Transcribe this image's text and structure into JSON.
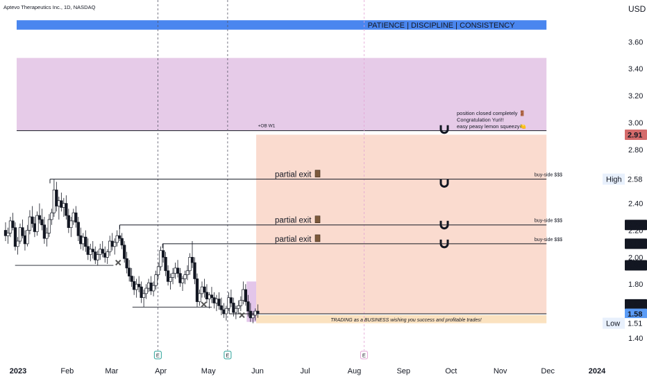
{
  "header": {
    "symbol_title": "Aptevo Therapeutics Inc., 1D, NASDAQ",
    "currency": "USD"
  },
  "chart_data": {
    "type": "candlestick",
    "title": "Aptevo Therapeutics Inc., 1D, NASDAQ",
    "y_unit": "USD",
    "ylim": [
      1.28,
      3.82
    ],
    "x_range": [
      "2023-01-01",
      "2024-01-08"
    ],
    "x_ticks": [
      {
        "label": "2023",
        "date": "2023-01-01",
        "bold": true
      },
      {
        "label": "Feb",
        "date": "2023-02-01"
      },
      {
        "label": "Mar",
        "date": "2023-03-01"
      },
      {
        "label": "Apr",
        "date": "2023-04-01"
      },
      {
        "label": "May",
        "date": "2023-05-01"
      },
      {
        "label": "Jun",
        "date": "2023-06-01"
      },
      {
        "label": "Jul",
        "date": "2023-07-01"
      },
      {
        "label": "Aug",
        "date": "2023-08-01"
      },
      {
        "label": "Sep",
        "date": "2023-09-01"
      },
      {
        "label": "Oct",
        "date": "2023-10-01"
      },
      {
        "label": "Nov",
        "date": "2023-11-01"
      },
      {
        "label": "Dec",
        "date": "2023-12-01"
      },
      {
        "label": "2024",
        "date": "2024-01-01",
        "bold": true
      }
    ],
    "y_ticks": [
      "1.40",
      "1.60",
      "1.80",
      "2.00",
      "2.20",
      "2.40",
      "2.60",
      "2.80",
      "3.00",
      "3.20",
      "3.40",
      "3.60"
    ],
    "price_labels": [
      {
        "text": "2.91",
        "value": 2.91,
        "bg": "#d46b6b",
        "fg": "#ffffff"
      },
      {
        "text": "2.58",
        "value": 2.58,
        "tag": "High",
        "bg": "#ffffff",
        "fg": "#131722"
      },
      {
        "text": "2.24",
        "value": 2.24,
        "bg": "#131722",
        "fg": "#ffffff"
      },
      {
        "text": "2.10",
        "value": 2.1,
        "bg": "#131722",
        "fg": "#ffffff"
      },
      {
        "text": "1.94",
        "value": 1.94,
        "bg": "#131722",
        "fg": "#ffffff"
      },
      {
        "text": "1.65",
        "value": 1.65,
        "bg": "#131722",
        "fg": "#ffffff"
      },
      {
        "text": "1.58",
        "value": 1.58,
        "bg": "#5b9cf6",
        "fg": "#ffffff"
      },
      {
        "text": "1.51",
        "value": 1.51,
        "tag": "Low",
        "bg": "#ffffff",
        "fg": "#131722"
      }
    ],
    "zones": [
      {
        "name": "banner",
        "y1": 3.76,
        "y2": 3.69,
        "x1": "2023-01-01",
        "x2": "2023-12-01",
        "color": "#4a86ef",
        "label": "PATIENCE | DISCIPLINE | CONSISTENCY"
      },
      {
        "name": "order-block",
        "y1": 3.48,
        "y2": 2.94,
        "x1": "2023-01-01",
        "x2": "2023-12-01",
        "color": "#e6cbe8",
        "label": "+OB W1"
      },
      {
        "name": "target-zone",
        "y1": 2.91,
        "y2": 1.58,
        "x1": "2023-06-01",
        "x2": "2023-12-01",
        "color": "#fadbcf"
      },
      {
        "name": "entry-zone",
        "y1": 1.57,
        "y2": 1.51,
        "x1": "2023-06-01",
        "x2": "2023-12-01",
        "color": "#fbe2c0",
        "label": "TRADING as a BUSINESS wishing you success and profitable trades!"
      },
      {
        "name": "liquidity-sweep",
        "y1": 1.82,
        "y2": 1.52,
        "x1": "2023-05-26",
        "x2": "2023-06-01",
        "color": "#e3c6ea"
      }
    ],
    "levels": [
      {
        "value": 2.58,
        "x1": "2023-01-22",
        "x2": "2023-12-01",
        "label": "partial exit",
        "tag": "buy-side $$$"
      },
      {
        "value": 2.24,
        "x1": "2023-03-07",
        "x2": "2023-12-01",
        "label": "partial exit",
        "tag": "buy-side $$$"
      },
      {
        "value": 2.1,
        "x1": "2023-04-03",
        "x2": "2023-12-01",
        "label": "partial exit",
        "tag": "buy-side $$$"
      }
    ],
    "swept_levels": [
      {
        "value": 1.94,
        "x1": "2022-12-31",
        "x2": "2023-03-03"
      },
      {
        "value": 1.63,
        "x1": "2023-03-15",
        "x2": "2023-05-04"
      },
      {
        "value": 1.58,
        "x1": "2023-05-15",
        "x2": "2023-12-01"
      }
    ],
    "vertical_markers": [
      {
        "date": "2023-03-31",
        "label": "E"
      },
      {
        "date": "2023-05-14",
        "label": "E"
      },
      {
        "date": "2023-08-08",
        "label": "E"
      }
    ],
    "cross_marks": [
      {
        "date": "2023-03-06",
        "value": 1.96
      },
      {
        "date": "2023-04-29",
        "value": 1.65
      },
      {
        "date": "2023-05-23",
        "value": 1.57
      }
    ],
    "magnet_marks": [
      2.96,
      2.55,
      2.24,
      2.1
    ],
    "note": [
      "position closed completely 🚪",
      "Congratulation Yuri!!",
      "easy peasy lemon squeezy🍋"
    ],
    "candles": [
      [
        2.2,
        2.26,
        2.12,
        2.16
      ],
      [
        2.16,
        2.22,
        2.1,
        2.18
      ],
      [
        2.18,
        2.3,
        2.15,
        2.27
      ],
      [
        2.27,
        2.33,
        2.2,
        2.22
      ],
      [
        2.22,
        2.26,
        2.05,
        2.08
      ],
      [
        2.08,
        2.15,
        2.02,
        2.12
      ],
      [
        2.12,
        2.25,
        2.1,
        2.22
      ],
      [
        2.22,
        2.28,
        2.14,
        2.16
      ],
      [
        2.16,
        2.2,
        2.05,
        2.1
      ],
      [
        2.1,
        2.24,
        2.08,
        2.2
      ],
      [
        2.2,
        2.35,
        2.17,
        2.3
      ],
      [
        2.3,
        2.38,
        2.22,
        2.25
      ],
      [
        2.25,
        2.3,
        2.15,
        2.19
      ],
      [
        2.19,
        2.34,
        2.16,
        2.31
      ],
      [
        2.31,
        2.4,
        2.25,
        2.28
      ],
      [
        2.28,
        2.36,
        2.2,
        2.24
      ],
      [
        2.24,
        2.3,
        2.1,
        2.14
      ],
      [
        2.14,
        2.22,
        2.08,
        2.18
      ],
      [
        2.18,
        2.32,
        2.15,
        2.28
      ],
      [
        2.28,
        2.36,
        2.24,
        2.33
      ],
      [
        2.33,
        2.58,
        2.3,
        2.5
      ],
      [
        2.5,
        2.56,
        2.34,
        2.38
      ],
      [
        2.38,
        2.45,
        2.28,
        2.42
      ],
      [
        2.42,
        2.48,
        2.34,
        2.37
      ],
      [
        2.37,
        2.44,
        2.3,
        2.4
      ],
      [
        2.4,
        2.46,
        2.28,
        2.31
      ],
      [
        2.31,
        2.36,
        2.18,
        2.22
      ],
      [
        2.22,
        2.3,
        2.15,
        2.27
      ],
      [
        2.27,
        2.36,
        2.24,
        2.33
      ],
      [
        2.33,
        2.38,
        2.22,
        2.26
      ],
      [
        2.26,
        2.3,
        2.12,
        2.16
      ],
      [
        2.16,
        2.22,
        2.06,
        2.1
      ],
      [
        2.1,
        2.18,
        2.05,
        2.15
      ],
      [
        2.15,
        2.2,
        2.04,
        2.08
      ],
      [
        2.08,
        2.14,
        1.98,
        2.02
      ],
      [
        2.02,
        2.1,
        1.97,
        2.06
      ],
      [
        2.06,
        2.12,
        1.99,
        2.04
      ],
      [
        2.04,
        2.08,
        1.95,
        1.98
      ],
      [
        1.98,
        2.05,
        1.94,
        2.02
      ],
      [
        2.02,
        2.1,
        1.98,
        2.06
      ],
      [
        2.06,
        2.12,
        2.0,
        2.03
      ],
      [
        2.03,
        2.08,
        1.96,
        2.0
      ],
      [
        2.0,
        2.06,
        1.95,
        2.04
      ],
      [
        2.04,
        2.16,
        2.01,
        2.12
      ],
      [
        2.12,
        2.18,
        2.05,
        2.08
      ],
      [
        2.08,
        2.14,
        2.02,
        2.11
      ],
      [
        2.11,
        2.2,
        2.08,
        2.16
      ],
      [
        2.16,
        2.24,
        2.12,
        2.14
      ],
      [
        2.14,
        2.18,
        2.06,
        2.09
      ],
      [
        2.09,
        2.12,
        1.96,
        1.99
      ],
      [
        1.99,
        2.04,
        1.88,
        1.92
      ],
      [
        1.92,
        1.98,
        1.82,
        1.86
      ],
      [
        1.86,
        1.92,
        1.78,
        1.82
      ],
      [
        1.82,
        1.86,
        1.72,
        1.76
      ],
      [
        1.76,
        1.84,
        1.7,
        1.8
      ],
      [
        1.8,
        1.86,
        1.74,
        1.78
      ],
      [
        1.78,
        1.82,
        1.66,
        1.7
      ],
      [
        1.7,
        1.76,
        1.63,
        1.73
      ],
      [
        1.73,
        1.8,
        1.69,
        1.77
      ],
      [
        1.77,
        1.84,
        1.74,
        1.81
      ],
      [
        1.81,
        1.86,
        1.72,
        1.75
      ],
      [
        1.75,
        1.82,
        1.71,
        1.79
      ],
      [
        1.79,
        1.9,
        1.76,
        1.87
      ],
      [
        1.87,
        1.96,
        1.84,
        1.93
      ],
      [
        1.93,
        2.08,
        1.9,
        2.05
      ],
      [
        2.05,
        2.1,
        1.96,
        2.0
      ],
      [
        2.0,
        2.04,
        1.86,
        1.9
      ],
      [
        1.9,
        1.94,
        1.79,
        1.82
      ],
      [
        1.82,
        1.88,
        1.76,
        1.85
      ],
      [
        1.85,
        1.92,
        1.8,
        1.88
      ],
      [
        1.88,
        1.96,
        1.84,
        1.92
      ],
      [
        1.92,
        1.98,
        1.85,
        1.88
      ],
      [
        1.88,
        1.92,
        1.78,
        1.81
      ],
      [
        1.81,
        1.86,
        1.75,
        1.84
      ],
      [
        1.84,
        1.9,
        1.8,
        1.87
      ],
      [
        1.87,
        1.94,
        1.83,
        1.9
      ],
      [
        1.9,
        2.03,
        1.87,
        2.0
      ],
      [
        2.0,
        2.12,
        1.92,
        1.96
      ],
      [
        1.96,
        2.0,
        1.8,
        1.84
      ],
      [
        1.84,
        1.88,
        1.63,
        1.67
      ],
      [
        1.67,
        1.76,
        1.64,
        1.73
      ],
      [
        1.73,
        1.82,
        1.7,
        1.78
      ],
      [
        1.78,
        1.84,
        1.7,
        1.74
      ],
      [
        1.74,
        1.8,
        1.66,
        1.69
      ],
      [
        1.69,
        1.74,
        1.62,
        1.72
      ],
      [
        1.72,
        1.78,
        1.66,
        1.7
      ],
      [
        1.7,
        1.74,
        1.62,
        1.66
      ],
      [
        1.66,
        1.72,
        1.6,
        1.69
      ],
      [
        1.69,
        1.74,
        1.61,
        1.64
      ],
      [
        1.64,
        1.7,
        1.57,
        1.61
      ],
      [
        1.61,
        1.66,
        1.55,
        1.58
      ],
      [
        1.58,
        1.64,
        1.53,
        1.62
      ],
      [
        1.62,
        1.74,
        1.6,
        1.7
      ],
      [
        1.7,
        1.76,
        1.63,
        1.66
      ],
      [
        1.66,
        1.7,
        1.56,
        1.59
      ],
      [
        1.59,
        1.64,
        1.54,
        1.62
      ],
      [
        1.62,
        1.68,
        1.58,
        1.64
      ],
      [
        1.64,
        1.71,
        1.6,
        1.68
      ],
      [
        1.68,
        1.82,
        1.65,
        1.76
      ],
      [
        1.76,
        1.8,
        1.64,
        1.67
      ],
      [
        1.67,
        1.72,
        1.56,
        1.6
      ],
      [
        1.6,
        1.66,
        1.52,
        1.55
      ],
      [
        1.55,
        1.6,
        1.51,
        1.57
      ],
      [
        1.57,
        1.62,
        1.53,
        1.6
      ],
      [
        1.6,
        1.65,
        1.55,
        1.58
      ]
    ]
  }
}
